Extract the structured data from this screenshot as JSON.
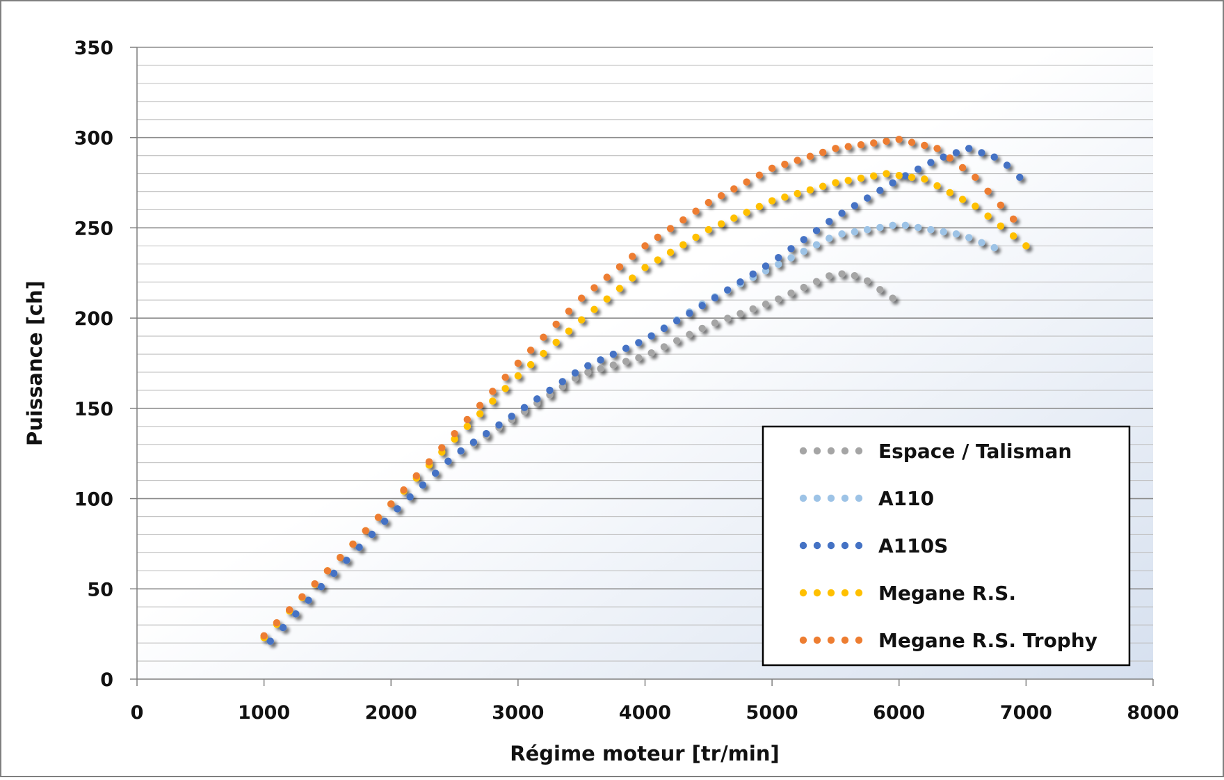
{
  "chart_data": {
    "type": "scatter",
    "title": "",
    "xlabel": "Régime moteur [tr/min]",
    "ylabel": "Puissance [ch]",
    "xlim": [
      0,
      8000
    ],
    "ylim": [
      0,
      350
    ],
    "x_ticks": [
      0,
      1000,
      2000,
      3000,
      4000,
      5000,
      6000,
      7000,
      8000
    ],
    "y_ticks": [
      0,
      50,
      100,
      150,
      200,
      250,
      300,
      350
    ],
    "grid": "horizontal",
    "legend_position": "bottom-right",
    "series": [
      {
        "name": "Espace / Talisman",
        "color": "#a5a5a5",
        "x_start": 1050,
        "x_end": 5950,
        "x_step": 100,
        "anchors": [
          [
            1050,
            21
          ],
          [
            1500,
            55
          ],
          [
            2000,
            91
          ],
          [
            2500,
            124
          ],
          [
            3000,
            146
          ],
          [
            3500,
            169
          ],
          [
            4000,
            179
          ],
          [
            4500,
            196
          ],
          [
            5000,
            209
          ],
          [
            5500,
            225
          ],
          [
            5700,
            223
          ],
          [
            5950,
            211
          ]
        ]
      },
      {
        "name": "A110",
        "color": "#9dc3e6",
        "x_start": 1050,
        "x_end": 6750,
        "x_step": 100,
        "anchors": [
          [
            1050,
            21
          ],
          [
            1500,
            55
          ],
          [
            2000,
            91
          ],
          [
            2500,
            124
          ],
          [
            3000,
            148
          ],
          [
            3500,
            172
          ],
          [
            4000,
            188
          ],
          [
            4500,
            210
          ],
          [
            5000,
            228
          ],
          [
            5500,
            246
          ],
          [
            6000,
            252
          ],
          [
            6500,
            246
          ],
          [
            6750,
            239
          ]
        ]
      },
      {
        "name": "A110S",
        "color": "#4472c4",
        "x_start": 1050,
        "x_end": 6950,
        "x_step": 100,
        "anchors": [
          [
            1050,
            21
          ],
          [
            1500,
            55
          ],
          [
            2000,
            91
          ],
          [
            2500,
            124
          ],
          [
            3000,
            148
          ],
          [
            3500,
            172
          ],
          [
            4000,
            188
          ],
          [
            4500,
            209
          ],
          [
            5000,
            231
          ],
          [
            5500,
            256
          ],
          [
            6000,
            277
          ],
          [
            6300,
            288
          ],
          [
            6550,
            294
          ],
          [
            6800,
            288
          ],
          [
            6950,
            278
          ]
        ]
      },
      {
        "name": "Megane R.S.",
        "color": "#ffc000",
        "x_start": 1000,
        "x_end": 7000,
        "x_step": 100,
        "anchors": [
          [
            1000,
            23
          ],
          [
            1500,
            60
          ],
          [
            2000,
            97
          ],
          [
            2500,
            133
          ],
          [
            3000,
            168
          ],
          [
            3500,
            199
          ],
          [
            4000,
            228
          ],
          [
            4500,
            249
          ],
          [
            5000,
            265
          ],
          [
            5500,
            275
          ],
          [
            5900,
            280
          ],
          [
            6200,
            277
          ],
          [
            6600,
            262
          ],
          [
            7000,
            240
          ]
        ]
      },
      {
        "name": "Megane R.S. Trophy",
        "color": "#ed7d31",
        "x_start": 1000,
        "x_end": 6950,
        "x_step": 100,
        "anchors": [
          [
            1000,
            24
          ],
          [
            1500,
            60
          ],
          [
            2000,
            97
          ],
          [
            2500,
            136
          ],
          [
            3000,
            175
          ],
          [
            3500,
            211
          ],
          [
            4000,
            240
          ],
          [
            4500,
            264
          ],
          [
            5000,
            283
          ],
          [
            5500,
            294
          ],
          [
            6000,
            299
          ],
          [
            6300,
            294
          ],
          [
            6600,
            278
          ],
          [
            6950,
            251
          ]
        ]
      }
    ]
  }
}
